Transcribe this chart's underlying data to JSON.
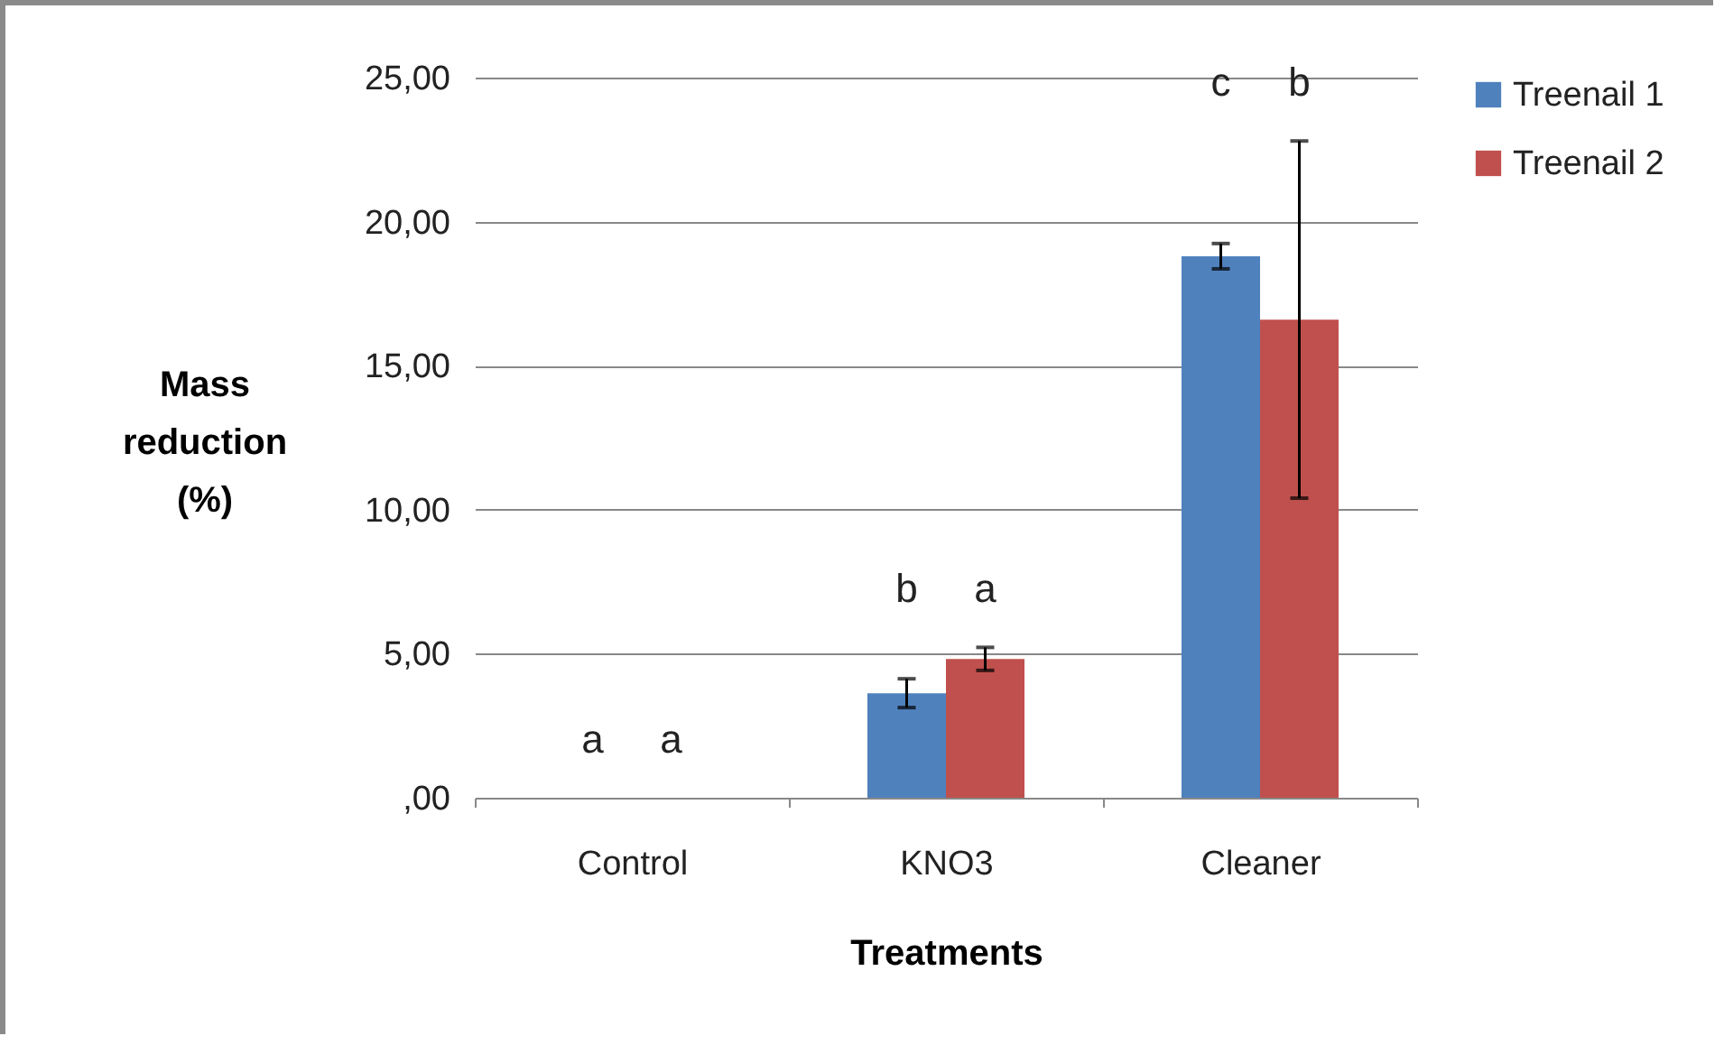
{
  "chart_data": {
    "type": "bar",
    "xlabel": "Treatments",
    "ylabel": "Mass reduction (%)",
    "categories": [
      "Control",
      "KNO3",
      "Cleaner"
    ],
    "series": [
      {
        "name": "Treenail 1",
        "color": "#4f81bd",
        "values": [
          0,
          3.63,
          18.8
        ],
        "errors": [
          null,
          0.5,
          0.44
        ]
      },
      {
        "name": "Treenail 2",
        "color": "#c0504d",
        "values": [
          0,
          4.82,
          16.6
        ],
        "errors": [
          null,
          0.4,
          6.2
        ]
      }
    ],
    "ylim": [
      0,
      25
    ],
    "yticks": [
      {
        "value": 0,
        "label": ",00"
      },
      {
        "value": 5,
        "label": "5,00"
      },
      {
        "value": 10,
        "label": "10,00"
      },
      {
        "value": 15,
        "label": "15,00"
      },
      {
        "value": 20,
        "label": "20,00"
      },
      {
        "value": 25,
        "label": "25,00"
      }
    ],
    "grid": "y",
    "legend": "right",
    "annotations": [
      "a",
      "a",
      "b",
      "a",
      "c",
      "b"
    ]
  }
}
